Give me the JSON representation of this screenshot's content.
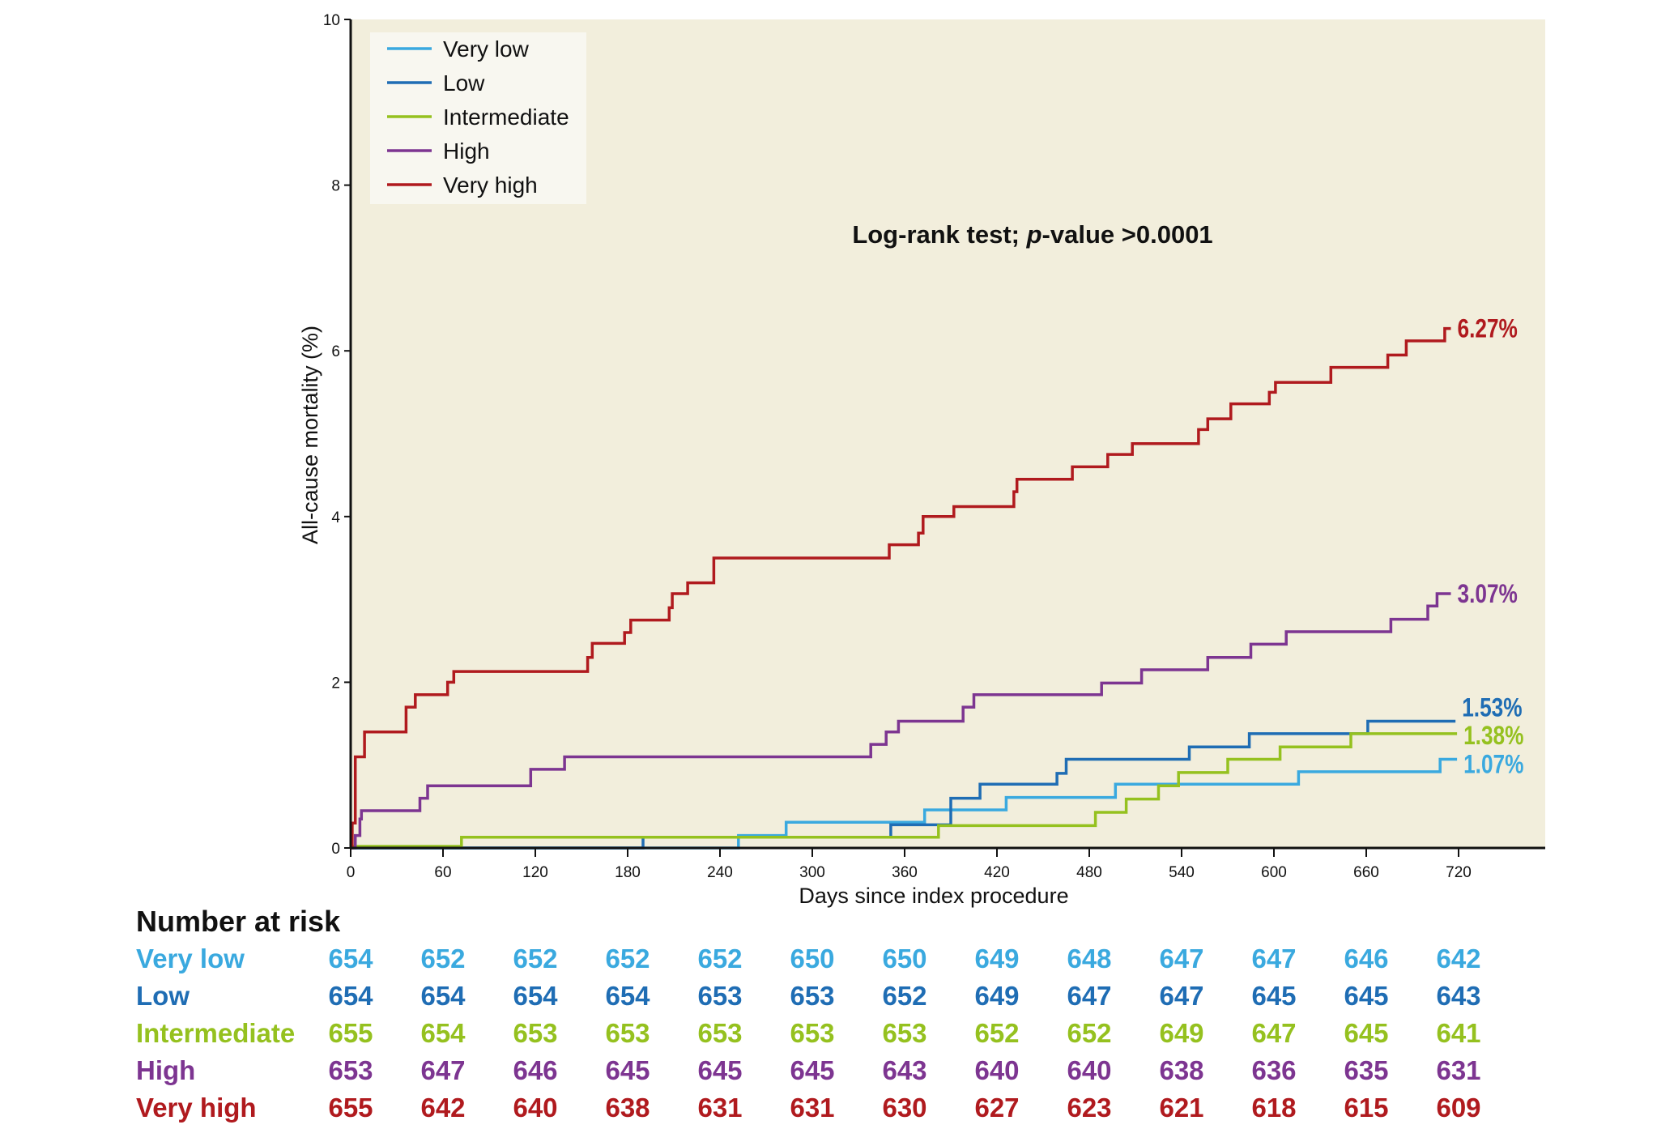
{
  "chart_data": {
    "type": "line",
    "step": true,
    "title": "",
    "annotation": {
      "prefix": "Log-rank test; ",
      "italic": "p",
      "suffix": "-value >0.0001"
    },
    "xlabel": "Days since index procedure",
    "ylabel": "All-cause mortality (%)",
    "xlim": [
      0,
      776
    ],
    "ylim": [
      0,
      10
    ],
    "xticks": [
      0,
      60,
      120,
      180,
      240,
      300,
      360,
      420,
      480,
      540,
      600,
      660,
      720
    ],
    "yticks": [
      0,
      2,
      4,
      6,
      8,
      10
    ],
    "legend_position": "top-left",
    "series": [
      {
        "name": "Very low",
        "color": "#3aa9df",
        "end_label": "1.07%",
        "points": [
          [
            0,
            0
          ],
          [
            252,
            0.15
          ],
          [
            283,
            0.31
          ],
          [
            373,
            0.46
          ],
          [
            426,
            0.61
          ],
          [
            497,
            0.77
          ],
          [
            616,
            0.92
          ],
          [
            708,
            1.07
          ],
          [
            719,
            1.07
          ]
        ]
      },
      {
        "name": "Low",
        "color": "#1f6db4",
        "end_label": "1.53%",
        "points": [
          [
            0,
            0
          ],
          [
            190,
            0.13
          ],
          [
            351,
            0.28
          ],
          [
            390,
            0.6
          ],
          [
            409,
            0.77
          ],
          [
            459,
            0.9
          ],
          [
            465,
            1.07
          ],
          [
            545,
            1.22
          ],
          [
            584,
            1.38
          ],
          [
            661,
            1.53
          ],
          [
            718,
            1.53
          ]
        ]
      },
      {
        "name": "Intermediate",
        "color": "#95c11f",
        "end_label": "1.38%",
        "points": [
          [
            0,
            0.02
          ],
          [
            72,
            0.13
          ],
          [
            382,
            0.27
          ],
          [
            484,
            0.43
          ],
          [
            504,
            0.59
          ],
          [
            525,
            0.75
          ],
          [
            538,
            0.91
          ],
          [
            570,
            1.07
          ],
          [
            604,
            1.22
          ],
          [
            650,
            1.38
          ],
          [
            719,
            1.38
          ]
        ]
      },
      {
        "name": "High",
        "color": "#7d3591",
        "end_label": "3.07%",
        "points": [
          [
            0,
            0
          ],
          [
            3,
            0.15
          ],
          [
            6,
            0.35
          ],
          [
            7,
            0.45
          ],
          [
            45,
            0.6
          ],
          [
            50,
            0.75
          ],
          [
            117,
            0.95
          ],
          [
            139,
            1.1
          ],
          [
            338,
            1.25
          ],
          [
            348,
            1.4
          ],
          [
            356,
            1.53
          ],
          [
            398,
            1.7
          ],
          [
            405,
            1.85
          ],
          [
            488,
            1.99
          ],
          [
            514,
            2.15
          ],
          [
            557,
            2.3
          ],
          [
            585,
            2.46
          ],
          [
            608,
            2.61
          ],
          [
            676,
            2.76
          ],
          [
            700,
            2.92
          ],
          [
            706,
            3.07
          ],
          [
            715,
            3.07
          ]
        ]
      },
      {
        "name": "Very high",
        "color": "#b01a1e",
        "end_label": "6.27%",
        "points": [
          [
            0,
            0
          ],
          [
            1,
            0.3
          ],
          [
            3,
            1.1
          ],
          [
            9,
            1.4
          ],
          [
            36,
            1.7
          ],
          [
            42,
            1.85
          ],
          [
            63,
            2.0
          ],
          [
            67,
            2.13
          ],
          [
            154,
            2.3
          ],
          [
            157,
            2.47
          ],
          [
            178,
            2.6
          ],
          [
            182,
            2.75
          ],
          [
            207,
            2.9
          ],
          [
            209,
            3.07
          ],
          [
            219,
            3.2
          ],
          [
            236,
            3.5
          ],
          [
            350,
            3.66
          ],
          [
            369,
            3.8
          ],
          [
            372,
            4.0
          ],
          [
            392,
            4.12
          ],
          [
            431,
            4.3
          ],
          [
            433,
            4.45
          ],
          [
            469,
            4.6
          ],
          [
            492,
            4.75
          ],
          [
            508,
            4.88
          ],
          [
            551,
            5.05
          ],
          [
            557,
            5.18
          ],
          [
            572,
            5.36
          ],
          [
            597,
            5.5
          ],
          [
            601,
            5.62
          ],
          [
            637,
            5.8
          ],
          [
            674,
            5.95
          ],
          [
            686,
            6.12
          ],
          [
            711,
            6.27
          ],
          [
            715,
            6.27
          ]
        ]
      }
    ],
    "risk_table": {
      "title": "Number at risk",
      "rows": [
        {
          "name": "Very low",
          "values": [
            654,
            652,
            652,
            652,
            652,
            650,
            650,
            649,
            648,
            647,
            647,
            646,
            642
          ]
        },
        {
          "name": "Low",
          "values": [
            654,
            654,
            654,
            654,
            653,
            653,
            652,
            649,
            647,
            647,
            645,
            645,
            643
          ]
        },
        {
          "name": "Intermediate",
          "values": [
            655,
            654,
            653,
            653,
            653,
            653,
            653,
            652,
            652,
            649,
            647,
            645,
            641
          ]
        },
        {
          "name": "High",
          "values": [
            653,
            647,
            646,
            645,
            645,
            645,
            643,
            640,
            640,
            638,
            636,
            635,
            631
          ]
        },
        {
          "name": "Very high",
          "values": [
            655,
            642,
            640,
            638,
            631,
            631,
            630,
            627,
            623,
            621,
            618,
            615,
            609
          ]
        }
      ]
    }
  }
}
